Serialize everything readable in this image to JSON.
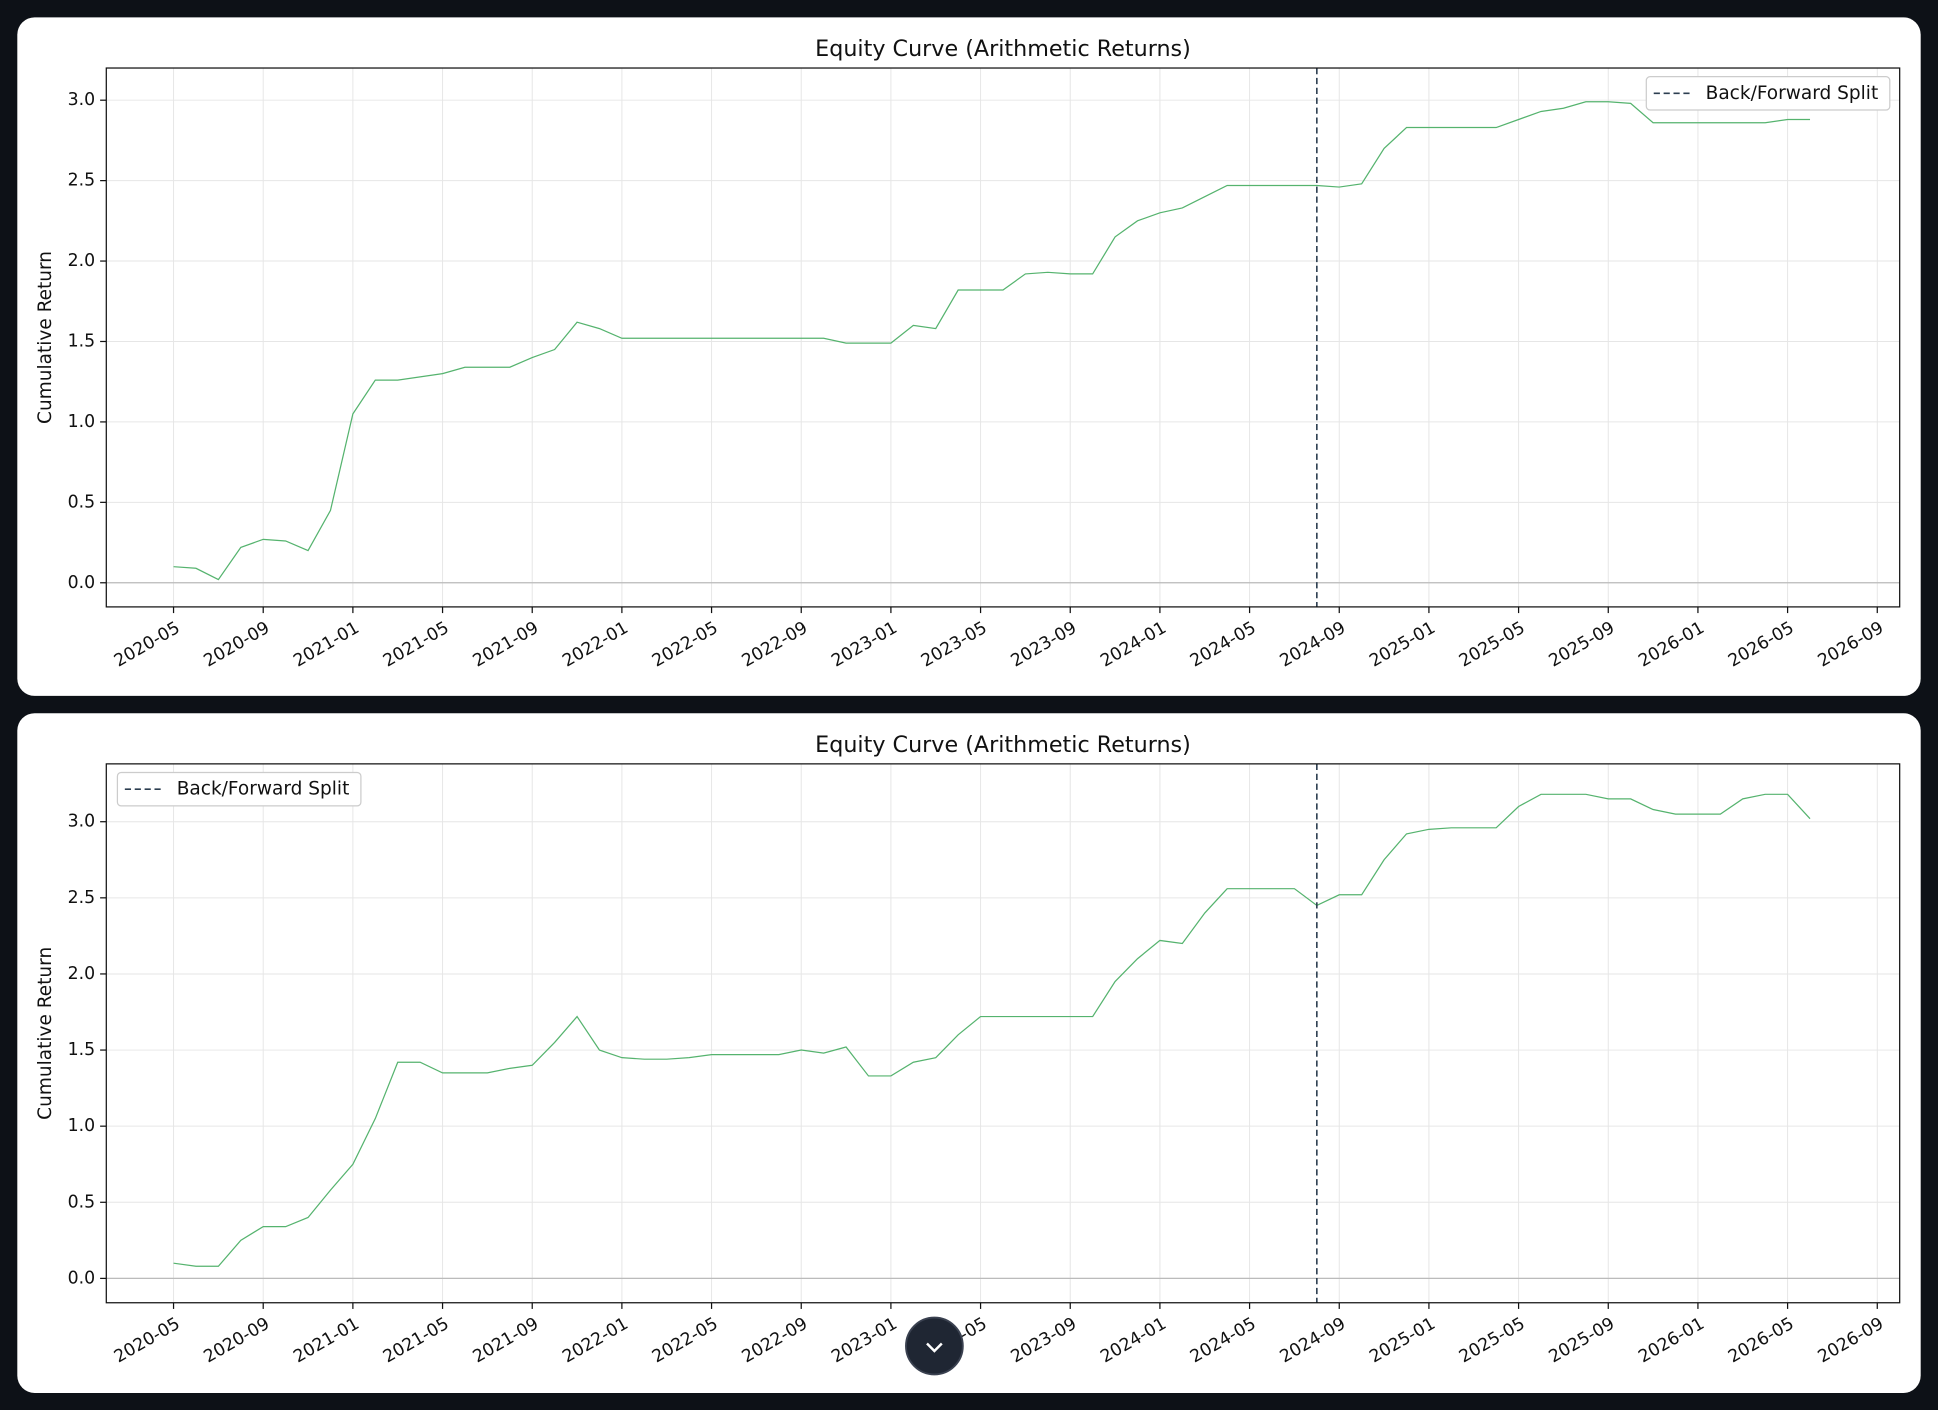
{
  "chart_data": [
    {
      "type": "line",
      "title": "Equity Curve (Arithmetic Returns)",
      "y_label": "Cumulative Return",
      "x": [
        "2020-05",
        "2020-06",
        "2020-07",
        "2020-08",
        "2020-09",
        "2020-10",
        "2020-11",
        "2020-12",
        "2021-01",
        "2021-02",
        "2021-03",
        "2021-04",
        "2021-05",
        "2021-06",
        "2021-07",
        "2021-08",
        "2021-09",
        "2021-10",
        "2021-11",
        "2021-12",
        "2022-01",
        "2022-02",
        "2022-03",
        "2022-04",
        "2022-05",
        "2022-06",
        "2022-07",
        "2022-08",
        "2022-09",
        "2022-10",
        "2022-11",
        "2022-12",
        "2023-01",
        "2023-02",
        "2023-03",
        "2023-04",
        "2023-05",
        "2023-06",
        "2023-07",
        "2023-08",
        "2023-09",
        "2023-10",
        "2023-11",
        "2023-12",
        "2024-01",
        "2024-02",
        "2024-03",
        "2024-04",
        "2024-05",
        "2024-06",
        "2024-07",
        "2024-08",
        "2024-09",
        "2024-10",
        "2024-11",
        "2024-12",
        "2025-01",
        "2025-02",
        "2025-03",
        "2025-04",
        "2025-05",
        "2025-06",
        "2025-07",
        "2025-08",
        "2025-09",
        "2025-10",
        "2025-11",
        "2025-12",
        "2026-01",
        "2026-02",
        "2026-03",
        "2026-04",
        "2026-05",
        "2026-06"
      ],
      "series": [
        {
          "color": "#55b36e",
          "values": [
            0.1,
            0.09,
            0.02,
            0.22,
            0.27,
            0.26,
            0.2,
            0.45,
            1.05,
            1.26,
            1.26,
            1.28,
            1.3,
            1.34,
            1.34,
            1.34,
            1.4,
            1.45,
            1.62,
            1.58,
            1.52,
            1.52,
            1.52,
            1.52,
            1.52,
            1.52,
            1.52,
            1.52,
            1.52,
            1.52,
            1.49,
            1.49,
            1.49,
            1.6,
            1.58,
            1.82,
            1.82,
            1.82,
            1.92,
            1.93,
            1.92,
            1.92,
            2.15,
            2.25,
            2.3,
            2.33,
            2.4,
            2.47,
            2.47,
            2.47,
            2.47,
            2.47,
            2.46,
            2.48,
            2.7,
            2.83,
            2.83,
            2.83,
            2.83,
            2.83,
            2.88,
            2.93,
            2.95,
            2.99,
            2.99,
            2.98,
            2.86,
            2.86,
            2.86,
            2.86,
            2.86,
            2.86,
            2.88,
            2.88
          ]
        }
      ],
      "split": {
        "name": "Back/Forward Split",
        "x": "2024-08",
        "color": "#2c3e50"
      },
      "legend": "upper right",
      "grid": true,
      "xlim": [
        "2020-02",
        "2026-10"
      ],
      "xticks": [
        "2020-05",
        "2020-09",
        "2021-01",
        "2021-05",
        "2021-09",
        "2022-01",
        "2022-05",
        "2022-09",
        "2023-01",
        "2023-05",
        "2023-09",
        "2024-01",
        "2024-05",
        "2024-09",
        "2025-01",
        "2025-05",
        "2025-09",
        "2026-01",
        "2026-05",
        "2026-09"
      ],
      "ylim": [
        -0.15,
        3.2
      ],
      "yticks": [
        {
          "value": 0,
          "label": "0.0"
        },
        {
          "value": 0.5,
          "label": "0.5"
        },
        {
          "value": 1,
          "label": "1.0"
        },
        {
          "value": 1.5,
          "label": "1.5"
        },
        {
          "value": 2,
          "label": "2.0"
        },
        {
          "value": 2.5,
          "label": "2.5"
        },
        {
          "value": 3,
          "label": "3.0"
        }
      ]
    },
    {
      "type": "line",
      "title": "Equity Curve (Arithmetic Returns)",
      "y_label": "Cumulative Return",
      "x": [
        "2020-05",
        "2020-06",
        "2020-07",
        "2020-08",
        "2020-09",
        "2020-10",
        "2020-11",
        "2020-12",
        "2021-01",
        "2021-02",
        "2021-03",
        "2021-04",
        "2021-05",
        "2021-06",
        "2021-07",
        "2021-08",
        "2021-09",
        "2021-10",
        "2021-11",
        "2021-12",
        "2022-01",
        "2022-02",
        "2022-03",
        "2022-04",
        "2022-05",
        "2022-06",
        "2022-07",
        "2022-08",
        "2022-09",
        "2022-10",
        "2022-11",
        "2022-12",
        "2023-01",
        "2023-02",
        "2023-03",
        "2023-04",
        "2023-05",
        "2023-06",
        "2023-07",
        "2023-08",
        "2023-09",
        "2023-10",
        "2023-11",
        "2023-12",
        "2024-01",
        "2024-02",
        "2024-03",
        "2024-04",
        "2024-05",
        "2024-06",
        "2024-07",
        "2024-08",
        "2024-09",
        "2024-10",
        "2024-11",
        "2024-12",
        "2025-01",
        "2025-02",
        "2025-03",
        "2025-04",
        "2025-05",
        "2025-06",
        "2025-07",
        "2025-08",
        "2025-09",
        "2025-10",
        "2025-11",
        "2025-12",
        "2026-01",
        "2026-02",
        "2026-03",
        "2026-04",
        "2026-05",
        "2026-06"
      ],
      "series": [
        {
          "color": "#55b36e",
          "values": [
            0.1,
            0.08,
            0.08,
            0.25,
            0.34,
            0.34,
            0.4,
            0.58,
            0.75,
            1.05,
            1.42,
            1.42,
            1.35,
            1.35,
            1.35,
            1.38,
            1.4,
            1.55,
            1.72,
            1.5,
            1.45,
            1.44,
            1.44,
            1.45,
            1.47,
            1.47,
            1.47,
            1.47,
            1.5,
            1.48,
            1.52,
            1.33,
            1.33,
            1.42,
            1.45,
            1.6,
            1.72,
            1.72,
            1.72,
            1.72,
            1.72,
            1.72,
            1.95,
            2.1,
            2.22,
            2.2,
            2.4,
            2.56,
            2.56,
            2.56,
            2.56,
            2.45,
            2.52,
            2.52,
            2.75,
            2.92,
            2.95,
            2.96,
            2.96,
            2.96,
            3.1,
            3.18,
            3.18,
            3.18,
            3.15,
            3.15,
            3.08,
            3.05,
            3.05,
            3.05,
            3.15,
            3.18,
            3.18,
            3.02
          ]
        }
      ],
      "split": {
        "name": "Back/Forward Split",
        "x": "2024-08",
        "color": "#2c3e50"
      },
      "legend": "upper left",
      "grid": true,
      "xlim": [
        "2020-02",
        "2026-10"
      ],
      "xticks": [
        "2020-05",
        "2020-09",
        "2021-01",
        "2021-05",
        "2021-09",
        "2022-01",
        "2022-05",
        "2022-09",
        "2023-01",
        "2023-05",
        "2023-09",
        "2024-01",
        "2024-05",
        "2024-09",
        "2025-01",
        "2025-05",
        "2025-09",
        "2026-01",
        "2026-05",
        "2026-09"
      ],
      "ylim": [
        -0.16,
        3.38
      ],
      "yticks": [
        {
          "value": 0,
          "label": "0.0"
        },
        {
          "value": 0.5,
          "label": "0.5"
        },
        {
          "value": 1,
          "label": "1.0"
        },
        {
          "value": 1.5,
          "label": "1.5"
        },
        {
          "value": 2,
          "label": "2.0"
        },
        {
          "value": 2.5,
          "label": "2.5"
        },
        {
          "value": 3,
          "label": "3.0"
        }
      ]
    }
  ]
}
